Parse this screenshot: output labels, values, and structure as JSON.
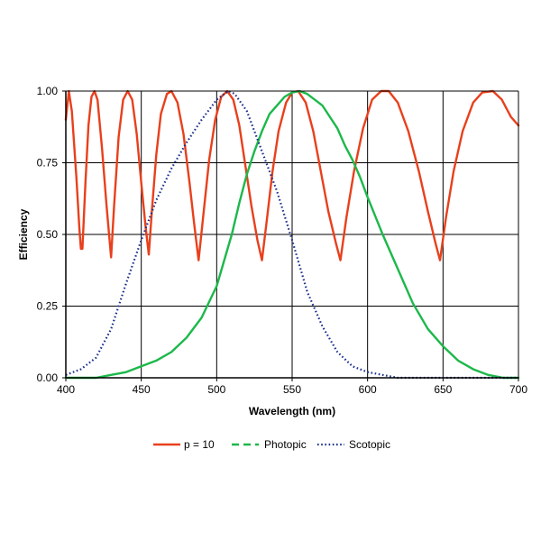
{
  "chart_data": {
    "type": "line",
    "title": "",
    "xlabel": "Wavelength (nm)",
    "ylabel": "Efficiency",
    "xlim": [
      400,
      700
    ],
    "ylim": [
      0,
      1
    ],
    "xticks": [
      400,
      450,
      500,
      550,
      600,
      650,
      700
    ],
    "yticks": [
      0,
      0.25,
      0.5,
      0.75,
      1
    ],
    "xtick_labels": [
      "400",
      "450",
      "500",
      "550",
      "600",
      "650",
      "700"
    ],
    "ytick_labels": [
      "0.00",
      "0.25",
      "0.50",
      "0.75",
      "1.00"
    ],
    "grid": true,
    "legend_position": "bottom",
    "series": [
      {
        "name": "p = 10",
        "color": "#e8401c",
        "style": "solid",
        "points": [
          [
            400,
            0.9
          ],
          [
            402,
            1.0
          ],
          [
            404,
            0.93
          ],
          [
            407,
            0.7
          ],
          [
            409,
            0.52
          ],
          [
            410,
            0.45
          ],
          [
            411,
            0.45
          ],
          [
            413,
            0.68
          ],
          [
            415,
            0.88
          ],
          [
            417,
            0.98
          ],
          [
            419,
            1.0
          ],
          [
            421,
            0.97
          ],
          [
            424,
            0.8
          ],
          [
            427,
            0.6
          ],
          [
            430,
            0.42
          ],
          [
            432,
            0.6
          ],
          [
            435,
            0.84
          ],
          [
            438,
            0.97
          ],
          [
            441,
            1.0
          ],
          [
            444,
            0.97
          ],
          [
            447,
            0.85
          ],
          [
            450,
            0.68
          ],
          [
            453,
            0.52
          ],
          [
            455,
            0.43
          ],
          [
            457,
            0.58
          ],
          [
            460,
            0.78
          ],
          [
            463,
            0.92
          ],
          [
            467,
            0.99
          ],
          [
            470,
            1.0
          ],
          [
            474,
            0.96
          ],
          [
            478,
            0.85
          ],
          [
            482,
            0.68
          ],
          [
            485,
            0.54
          ],
          [
            488,
            0.41
          ],
          [
            491,
            0.56
          ],
          [
            495,
            0.76
          ],
          [
            499,
            0.9
          ],
          [
            503,
            0.98
          ],
          [
            507,
            1.0
          ],
          [
            511,
            0.97
          ],
          [
            515,
            0.88
          ],
          [
            519,
            0.74
          ],
          [
            523,
            0.6
          ],
          [
            527,
            0.48
          ],
          [
            530,
            0.41
          ],
          [
            533,
            0.54
          ],
          [
            537,
            0.72
          ],
          [
            541,
            0.86
          ],
          [
            546,
            0.96
          ],
          [
            550,
            0.995
          ],
          [
            554,
            1.0
          ],
          [
            559,
            0.96
          ],
          [
            564,
            0.86
          ],
          [
            569,
            0.72
          ],
          [
            574,
            0.58
          ],
          [
            579,
            0.47
          ],
          [
            582,
            0.41
          ],
          [
            586,
            0.56
          ],
          [
            591,
            0.72
          ],
          [
            597,
            0.87
          ],
          [
            603,
            0.97
          ],
          [
            609,
            1.0
          ],
          [
            614,
            1.0
          ],
          [
            620,
            0.96
          ],
          [
            627,
            0.86
          ],
          [
            634,
            0.72
          ],
          [
            640,
            0.58
          ],
          [
            645,
            0.47
          ],
          [
            648,
            0.41
          ],
          [
            652,
            0.56
          ],
          [
            657,
            0.72
          ],
          [
            663,
            0.86
          ],
          [
            670,
            0.96
          ],
          [
            676,
            0.995
          ],
          [
            683,
            1.0
          ],
          [
            689,
            0.97
          ],
          [
            695,
            0.91
          ],
          [
            700,
            0.88
          ]
        ]
      },
      {
        "name": "Photopic",
        "color": "#1cb84a",
        "style": "dashed",
        "points": [
          [
            400,
            0.0
          ],
          [
            410,
            0.0
          ],
          [
            420,
            0.0
          ],
          [
            430,
            0.01
          ],
          [
            440,
            0.02
          ],
          [
            450,
            0.04
          ],
          [
            460,
            0.06
          ],
          [
            470,
            0.09
          ],
          [
            480,
            0.14
          ],
          [
            490,
            0.21
          ],
          [
            500,
            0.32
          ],
          [
            505,
            0.41
          ],
          [
            510,
            0.5
          ],
          [
            515,
            0.61
          ],
          [
            520,
            0.71
          ],
          [
            525,
            0.79
          ],
          [
            530,
            0.86
          ],
          [
            535,
            0.92
          ],
          [
            540,
            0.95
          ],
          [
            545,
            0.98
          ],
          [
            550,
            0.995
          ],
          [
            555,
            1.0
          ],
          [
            560,
            0.99
          ],
          [
            565,
            0.97
          ],
          [
            570,
            0.95
          ],
          [
            575,
            0.91
          ],
          [
            580,
            0.87
          ],
          [
            585,
            0.81
          ],
          [
            590,
            0.76
          ],
          [
            595,
            0.7
          ],
          [
            600,
            0.63
          ],
          [
            610,
            0.5
          ],
          [
            620,
            0.38
          ],
          [
            630,
            0.26
          ],
          [
            640,
            0.17
          ],
          [
            650,
            0.11
          ],
          [
            660,
            0.06
          ],
          [
            670,
            0.03
          ],
          [
            680,
            0.01
          ],
          [
            690,
            0.0
          ],
          [
            700,
            0.0
          ]
        ]
      },
      {
        "name": "Scotopic",
        "color": "#1a2f8c",
        "style": "dotted",
        "points": [
          [
            400,
            0.01
          ],
          [
            410,
            0.03
          ],
          [
            420,
            0.07
          ],
          [
            430,
            0.17
          ],
          [
            440,
            0.33
          ],
          [
            450,
            0.48
          ],
          [
            460,
            0.62
          ],
          [
            470,
            0.73
          ],
          [
            480,
            0.82
          ],
          [
            490,
            0.9
          ],
          [
            500,
            0.97
          ],
          [
            505,
            0.99
          ],
          [
            508,
            1.0
          ],
          [
            512,
            0.99
          ],
          [
            520,
            0.93
          ],
          [
            530,
            0.79
          ],
          [
            540,
            0.65
          ],
          [
            550,
            0.48
          ],
          [
            560,
            0.3
          ],
          [
            570,
            0.18
          ],
          [
            580,
            0.09
          ],
          [
            590,
            0.04
          ],
          [
            600,
            0.02
          ],
          [
            610,
            0.01
          ],
          [
            620,
            0.0
          ],
          [
            630,
            0.0
          ],
          [
            640,
            0.0
          ],
          [
            650,
            0.0
          ],
          [
            660,
            0.0
          ],
          [
            670,
            0.0
          ],
          [
            680,
            0.0
          ],
          [
            690,
            0.0
          ],
          [
            700,
            0.0
          ]
        ]
      }
    ]
  }
}
